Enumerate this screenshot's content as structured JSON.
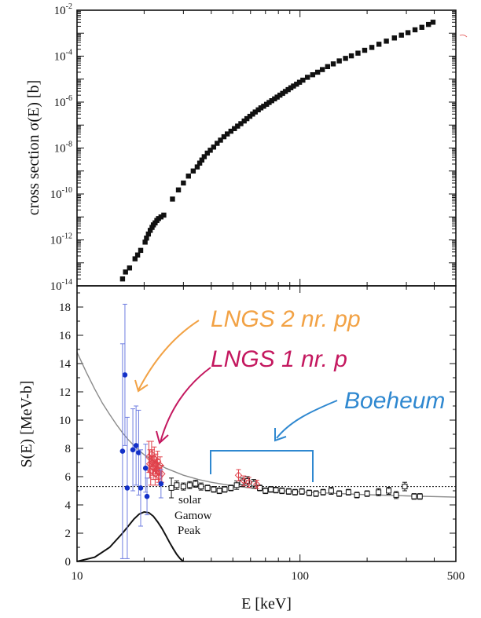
{
  "colors": {
    "black": "#111111",
    "blue_data": "#1230c8",
    "blue_err": "#6f7ee0",
    "red_data": "#e0404a",
    "annot_orange": "#f2a245",
    "annot_magenta": "#c4185f",
    "annot_blue": "#2f88d0",
    "fit_curve": "#8a8a8a"
  },
  "handwritten_notes": [
    {
      "text": "LNGS 2 nr. pp",
      "color": "#f2a245"
    },
    {
      "text": "LNGS 1 nr. p",
      "color": "#c4185f"
    },
    {
      "text": "Boeheum",
      "color": "#2f88d0"
    }
  ],
  "gamow_label": [
    "solar",
    "Gamow",
    "Peak"
  ],
  "chart_data": [
    {
      "type": "scatter",
      "panel": "top",
      "xscale": "log",
      "yscale": "log",
      "xlim": [
        10,
        500
      ],
      "ylim": [
        1e-14,
        0.01
      ],
      "ylabel": "cross section σ(E) [b]",
      "y_ticks": [
        {
          "v": 1e-14,
          "b": "10",
          "e": "-14"
        },
        {
          "v": 1e-12,
          "b": "10",
          "e": "-12"
        },
        {
          "v": 1e-10,
          "b": "10",
          "e": "-10"
        },
        {
          "v": 1e-08,
          "b": "10",
          "e": "-8"
        },
        {
          "v": 1e-06,
          "b": "10",
          "e": "-6"
        },
        {
          "v": 0.0001,
          "b": "10",
          "e": "-4"
        },
        {
          "v": 0.01,
          "b": "10",
          "e": "-2"
        }
      ],
      "series": [
        {
          "points": [
            [
              16.0,
              2e-14
            ],
            [
              16.5,
              4e-14
            ],
            [
              17.2,
              6e-14
            ],
            [
              18.2,
              1.5e-13
            ],
            [
              18.7,
              2.2e-13
            ],
            [
              19.3,
              3.5e-13
            ],
            [
              20.2,
              8e-13
            ],
            [
              20.5,
              1.2e-12
            ],
            [
              20.9,
              1.8e-12
            ],
            [
              21.3,
              2.6e-12
            ],
            [
              21.7,
              3.5e-12
            ],
            [
              22.0,
              4.5e-12
            ],
            [
              22.4,
              5.5e-12
            ],
            [
              22.8,
              7e-12
            ],
            [
              23.2,
              8.5e-12
            ],
            [
              23.8,
              1e-11
            ],
            [
              24.5,
              1.2e-11
            ],
            [
              26.8,
              6e-11
            ],
            [
              28.5,
              1.5e-10
            ],
            [
              30.0,
              3e-10
            ],
            [
              31.6,
              6e-10
            ],
            [
              33.2,
              1e-09
            ],
            [
              34.6,
              1.5e-09
            ],
            [
              35.5,
              2.2e-09
            ],
            [
              36.3,
              3e-09
            ],
            [
              37.2,
              4.2e-09
            ],
            [
              38.4,
              6e-09
            ],
            [
              39.6,
              8e-09
            ],
            [
              41.0,
              1.1e-08
            ],
            [
              42.5,
              1.6e-08
            ],
            [
              44.0,
              2.2e-08
            ],
            [
              45.6,
              3.1e-08
            ],
            [
              47.2,
              4.1e-08
            ],
            [
              49.0,
              5.4e-08
            ],
            [
              50.8,
              7e-08
            ],
            [
              52.5,
              9e-08
            ],
            [
              54.3,
              1.15e-07
            ],
            [
              56.2,
              1.5e-07
            ],
            [
              57.8,
              1.9e-07
            ],
            [
              59.6,
              2.4e-07
            ],
            [
              61.3,
              3e-07
            ],
            [
              63.0,
              3.7e-07
            ],
            [
              65.0,
              4.6e-07
            ],
            [
              66.8,
              5.6e-07
            ],
            [
              68.7,
              6.6e-07
            ],
            [
              70.8,
              8e-07
            ],
            [
              72.7,
              9.6e-07
            ],
            [
              74.7,
              1.15e-06
            ],
            [
              76.9,
              1.38e-06
            ],
            [
              79.0,
              1.65e-06
            ],
            [
              81.3,
              2e-06
            ],
            [
              83.6,
              2.4e-06
            ],
            [
              86.0,
              2.9e-06
            ],
            [
              88.5,
              3.5e-06
            ],
            [
              91.0,
              4.2e-06
            ],
            [
              93.5,
              5e-06
            ],
            [
              96.5,
              6e-06
            ],
            [
              99.5,
              7.3e-06
            ],
            [
              103,
              9e-06
            ],
            [
              108,
              1.2e-05
            ],
            [
              114,
              1.55e-05
            ],
            [
              120,
              2e-05
            ],
            [
              126,
              2.6e-05
            ],
            [
              133,
              3.5e-05
            ],
            [
              141,
              4.6e-05
            ],
            [
              150,
              6.2e-05
            ],
            [
              160,
              8e-05
            ],
            [
              170,
              0.000103
            ],
            [
              182,
              0.000135
            ],
            [
              195,
              0.00018
            ],
            [
              210,
              0.00024
            ],
            [
              226,
              0.00033
            ],
            [
              244,
              0.00045
            ],
            [
              265,
              0.00062
            ],
            [
              285,
              0.00082
            ],
            [
              305,
              0.00105
            ],
            [
              328,
              0.0014
            ],
            [
              352,
              0.0018
            ],
            [
              377,
              0.0024
            ],
            [
              395,
              0.003
            ]
          ]
        }
      ]
    },
    {
      "type": "scatter",
      "panel": "bottom",
      "xscale": "log",
      "xlim": [
        10,
        500
      ],
      "ylim": [
        0,
        19.5
      ],
      "xlabel": "E [keV]",
      "ylabel": "S(E) [MeV-b]",
      "x_ticks": [
        10,
        100,
        500
      ],
      "y_ticks": [
        0,
        2,
        4,
        6,
        8,
        10,
        12,
        14,
        16,
        18
      ],
      "reference_line_y": 5.3,
      "series": [
        {
          "color": "#1230c8",
          "points": [
            [
              16.4,
              13.2,
              5.0
            ],
            [
              16.0,
              7.8,
              7.6
            ],
            [
              16.8,
              5.2,
              5.0
            ],
            [
              17.8,
              7.9,
              2.9
            ],
            [
              18.4,
              8.2,
              2.8
            ],
            [
              18.9,
              7.7,
              3.0
            ],
            [
              19.3,
              5.2,
              2.7
            ],
            [
              20.3,
              6.6,
              1.7
            ],
            [
              20.6,
              4.6,
              1.3
            ],
            [
              23.8,
              5.5,
              1.0
            ]
          ]
        },
        {
          "color": "#e0404a",
          "points": [
            [
              21.0,
              7.4,
              1.1
            ],
            [
              21.2,
              6.9,
              1.0
            ],
            [
              21.4,
              6.4,
              1.0
            ],
            [
              21.6,
              7.6,
              0.9
            ],
            [
              21.8,
              7.0,
              0.9
            ],
            [
              22.0,
              6.6,
              0.8
            ],
            [
              22.2,
              7.3,
              0.8
            ],
            [
              22.4,
              6.2,
              0.8
            ],
            [
              22.6,
              6.9,
              0.7
            ],
            [
              22.8,
              6.5,
              0.7
            ],
            [
              23.0,
              7.1,
              0.7
            ],
            [
              23.2,
              6.3,
              0.7
            ],
            [
              23.4,
              6.0,
              0.6
            ],
            [
              23.6,
              6.8,
              0.6
            ],
            [
              24.0,
              6.2,
              0.6
            ],
            [
              53.0,
              6.1,
              0.4
            ],
            [
              56.0,
              5.7,
              0.35
            ],
            [
              59.0,
              5.6,
              0.35
            ],
            [
              64.0,
              5.45,
              0.3
            ]
          ]
        },
        {
          "color": "#111111",
          "points": [
            [
              26.5,
              5.2,
              0.7
            ],
            [
              28.0,
              5.4,
              0.3
            ],
            [
              30.0,
              5.3,
              0.25
            ],
            [
              32.0,
              5.4,
              0.25
            ],
            [
              34.0,
              5.5,
              0.25
            ],
            [
              36.0,
              5.3,
              0.25
            ],
            [
              38.5,
              5.2,
              0.2
            ],
            [
              41.0,
              5.1,
              0.2
            ],
            [
              43.5,
              5.0,
              0.2
            ],
            [
              46.0,
              5.1,
              0.2
            ],
            [
              49.0,
              5.2,
              0.2
            ],
            [
              52.0,
              5.4,
              0.3
            ],
            [
              55.0,
              5.6,
              0.3
            ],
            [
              58.0,
              5.7,
              0.3
            ],
            [
              62.0,
              5.5,
              0.3
            ],
            [
              66.0,
              5.2,
              0.2
            ],
            [
              70.0,
              5.0,
              0.2
            ],
            [
              74.0,
              5.1,
              0.2
            ],
            [
              78.0,
              5.05,
              0.2
            ],
            [
              83.0,
              5.0,
              0.2
            ],
            [
              89.0,
              4.95,
              0.2
            ],
            [
              95.0,
              4.9,
              0.2
            ],
            [
              102,
              4.95,
              0.2
            ],
            [
              110,
              4.85,
              0.2
            ],
            [
              118,
              4.8,
              0.2
            ],
            [
              127,
              4.9,
              0.2
            ],
            [
              138,
              5.0,
              0.25
            ],
            [
              150,
              4.8,
              0.2
            ],
            [
              165,
              4.9,
              0.2
            ],
            [
              180,
              4.7,
              0.2
            ],
            [
              200,
              4.8,
              0.2
            ],
            [
              225,
              4.9,
              0.25
            ],
            [
              250,
              5.0,
              0.25
            ],
            [
              270,
              4.7,
              0.25
            ],
            [
              295,
              5.3,
              0.3
            ],
            [
              325,
              4.6,
              0.2
            ],
            [
              345,
              4.6,
              0.2
            ]
          ]
        },
        {
          "color": "#8a8a8a",
          "name": "fit",
          "line": [
            [
              10,
              14.8
            ],
            [
              11,
              13.4
            ],
            [
              12,
              12.2
            ],
            [
              13,
              11.2
            ],
            [
              14,
              10.4
            ],
            [
              15,
              9.7
            ],
            [
              16,
              9.1
            ],
            [
              17,
              8.6
            ],
            [
              18,
              8.2
            ],
            [
              19,
              7.85
            ],
            [
              20,
              7.55
            ],
            [
              22,
              7.1
            ],
            [
              25,
              6.6
            ],
            [
              30,
              6.1
            ],
            [
              35,
              5.8
            ],
            [
              40,
              5.6
            ],
            [
              50,
              5.35
            ],
            [
              60,
              5.2
            ],
            [
              70,
              5.1
            ],
            [
              80,
              5.02
            ],
            [
              100,
              4.92
            ],
            [
              150,
              4.8
            ],
            [
              200,
              4.72
            ],
            [
              300,
              4.64
            ],
            [
              500,
              4.55
            ]
          ]
        },
        {
          "color": "#111111",
          "name": "gamow",
          "line": [
            [
              10,
              0.0
            ],
            [
              12,
              0.3
            ],
            [
              14,
              1.0
            ],
            [
              16,
              2.0
            ],
            [
              18,
              3.0
            ],
            [
              19,
              3.35
            ],
            [
              20,
              3.5
            ],
            [
              21,
              3.45
            ],
            [
              22,
              3.2
            ],
            [
              23,
              2.8
            ],
            [
              24,
              2.35
            ],
            [
              25,
              1.85
            ],
            [
              26,
              1.35
            ],
            [
              27,
              0.9
            ],
            [
              28,
              0.5
            ],
            [
              29,
              0.2
            ],
            [
              30,
              0.0
            ]
          ]
        }
      ]
    }
  ]
}
